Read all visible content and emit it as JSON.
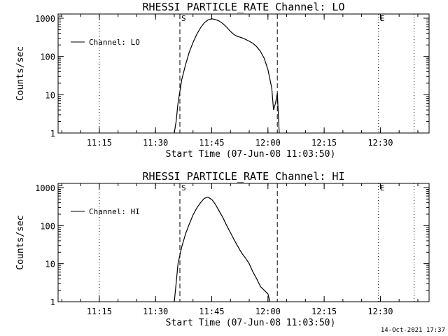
{
  "footer_timestamp": "14-Oct-2021 17:37",
  "colors": {
    "background": "#ffffff",
    "foreground": "#000000"
  },
  "chart_data": [
    {
      "type": "line",
      "title": "RHESSI PARTICLE_RATE Channel: LO",
      "xlabel": "Start Time (07-Jun-08 11:03:50)",
      "ylabel": "Counts/sec",
      "yscale": "log",
      "ylim": [
        1,
        1000
      ],
      "xlim": [
        "11:04",
        "12:43"
      ],
      "x_ticks": [
        "11:15",
        "11:30",
        "11:45",
        "12:00",
        "12:15",
        "12:30"
      ],
      "y_ticks": [
        "1",
        "10",
        "100",
        "1000"
      ],
      "legend": {
        "position": "top-left",
        "entries": [
          "Channel: LO"
        ]
      },
      "grid": false,
      "markers": [
        {
          "label": "S",
          "time": "11:36.5",
          "style": "dashed"
        },
        {
          "label": "",
          "time": "12:02.5",
          "style": "dashed"
        },
        {
          "label": "",
          "time": "11:15",
          "style": "dotted"
        },
        {
          "label": "E",
          "time": "12:29.5",
          "style": "dotted"
        },
        {
          "label": "",
          "time": "12:39",
          "style": "dotted"
        }
      ],
      "series": [
        {
          "name": "Channel: LO",
          "x": [
            "11:35",
            "11:35.5",
            "11:36",
            "11:37",
            "11:38",
            "11:39",
            "11:40",
            "11:41",
            "11:42",
            "11:43",
            "11:44",
            "11:45",
            "11:46",
            "11:47",
            "11:48",
            "11:49",
            "11:50",
            "11:51",
            "11:52",
            "11:53",
            "11:54",
            "11:55",
            "11:56",
            "11:57",
            "11:58",
            "11:59",
            "12:00",
            "12:01",
            "12:01.5",
            "12:02",
            "12:02.5",
            "12:03"
          ],
          "values": [
            1,
            2,
            6,
            25,
            60,
            130,
            230,
            380,
            560,
            760,
            900,
            970,
            920,
            840,
            720,
            580,
            450,
            370,
            330,
            310,
            280,
            250,
            220,
            180,
            135,
            90,
            45,
            15,
            4,
            6,
            11,
            1
          ]
        }
      ]
    },
    {
      "type": "line",
      "title": "RHESSI PARTICLE_RATE Channel: HI",
      "xlabel": "Start Time (07-Jun-08 11:03:50)",
      "ylabel": "Counts/sec",
      "yscale": "log",
      "ylim": [
        1,
        1000
      ],
      "xlim": [
        "11:04",
        "12:43"
      ],
      "x_ticks": [
        "11:15",
        "11:30",
        "11:45",
        "12:00",
        "12:15",
        "12:30"
      ],
      "y_ticks": [
        "1",
        "10",
        "100",
        "1000"
      ],
      "legend": {
        "position": "top-left",
        "entries": [
          "Channel: HI"
        ]
      },
      "grid": false,
      "markers": [
        {
          "label": "S",
          "time": "11:36.5",
          "style": "dashed"
        },
        {
          "label": "",
          "time": "12:02.5",
          "style": "dashed"
        },
        {
          "label": "",
          "time": "11:15",
          "style": "dotted"
        },
        {
          "label": "E",
          "time": "12:29.5",
          "style": "dotted"
        },
        {
          "label": "",
          "time": "12:39",
          "style": "dotted"
        }
      ],
      "series": [
        {
          "name": "Channel: HI",
          "x": [
            "11:35",
            "11:35.5",
            "11:36",
            "11:37",
            "11:38",
            "11:39",
            "11:40",
            "11:41",
            "11:42",
            "11:43",
            "11:44",
            "11:45",
            "11:46",
            "11:47",
            "11:48",
            "11:49",
            "11:50",
            "11:51",
            "11:52",
            "11:53",
            "11:54",
            "11:55",
            "11:56",
            "11:57",
            "11:58",
            "11:59",
            "12:00",
            "12:00.5"
          ],
          "values": [
            1,
            3,
            10,
            28,
            60,
            110,
            190,
            290,
            400,
            520,
            560,
            490,
            360,
            240,
            160,
            100,
            65,
            42,
            28,
            19,
            14,
            10,
            6,
            4,
            2.5,
            2,
            1.6,
            1
          ]
        }
      ]
    }
  ]
}
